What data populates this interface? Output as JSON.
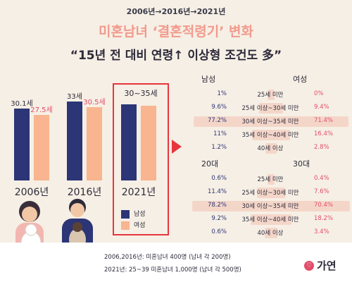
{
  "header": {
    "years": "2006년→2016년→2021년",
    "title": "미혼남녀 ‘결혼적령기’ 변화",
    "subtitle": "“15년 전 대비 연령↑ 이상형 조건도 多”"
  },
  "chart_data": [
    {
      "type": "bar",
      "categories": [
        "2006년",
        "2016년",
        "2021년"
      ],
      "series": [
        {
          "name": "남성",
          "values": [
            30.1,
            33,
            null
          ],
          "labels": [
            "30.1세",
            "33세",
            ""
          ]
        },
        {
          "name": "여성",
          "values": [
            27.5,
            30.5,
            null
          ],
          "labels": [
            "27.5세",
            "30.5세",
            ""
          ]
        }
      ],
      "annotation_2021": "30~35세",
      "colors": {
        "male": "#2c3576",
        "female": "#f8b58f",
        "highlight": "#e8353d"
      }
    },
    {
      "type": "table",
      "title_left": "남성",
      "title_right": "여성",
      "categories": [
        "25세 미만",
        "25세 이상~30세 미만",
        "30세 이상~35세 미만",
        "35세 이상~40세 미만",
        "40세 이상"
      ],
      "series": [
        {
          "name": "남성",
          "values": [
            1,
            9.6,
            77.2,
            11,
            1.2
          ],
          "labels": [
            "1%",
            "9.6%",
            "77.2%",
            "11%",
            "1.2%"
          ]
        },
        {
          "name": "여성",
          "values": [
            0,
            9.4,
            71.4,
            16.4,
            2.8
          ],
          "labels": [
            "0%",
            "9.4%",
            "71.4%",
            "16.4%",
            "2.8%"
          ]
        }
      ]
    },
    {
      "type": "table",
      "title_left": "20대",
      "title_right": "30대",
      "categories": [
        "25세 미만",
        "25세 이상~30세 미만",
        "30세 이상~35세 미만",
        "35세 이상~40세 미만",
        "40세 이상"
      ],
      "series": [
        {
          "name": "20대",
          "values": [
            0.6,
            11.4,
            78.2,
            9.2,
            0.6
          ],
          "labels": [
            "0.6%",
            "11.4%",
            "78.2%",
            "9.2%",
            "0.6%"
          ]
        },
        {
          "name": "30대",
          "values": [
            0.4,
            7.6,
            70.4,
            18.2,
            3.4
          ],
          "labels": [
            "0.4%",
            "7.6%",
            "70.4%",
            "18.2%",
            "3.4%"
          ]
        }
      ]
    }
  ],
  "legend": {
    "male": "남성",
    "female": "여성"
  },
  "footnotes": [
    "2006,2016년: 미혼남녀 400명 (남녀 각 200명)",
    "2021년: 25~39 미혼남녀 1,000명 (남녀 각 500명)"
  ],
  "brand": "가연"
}
